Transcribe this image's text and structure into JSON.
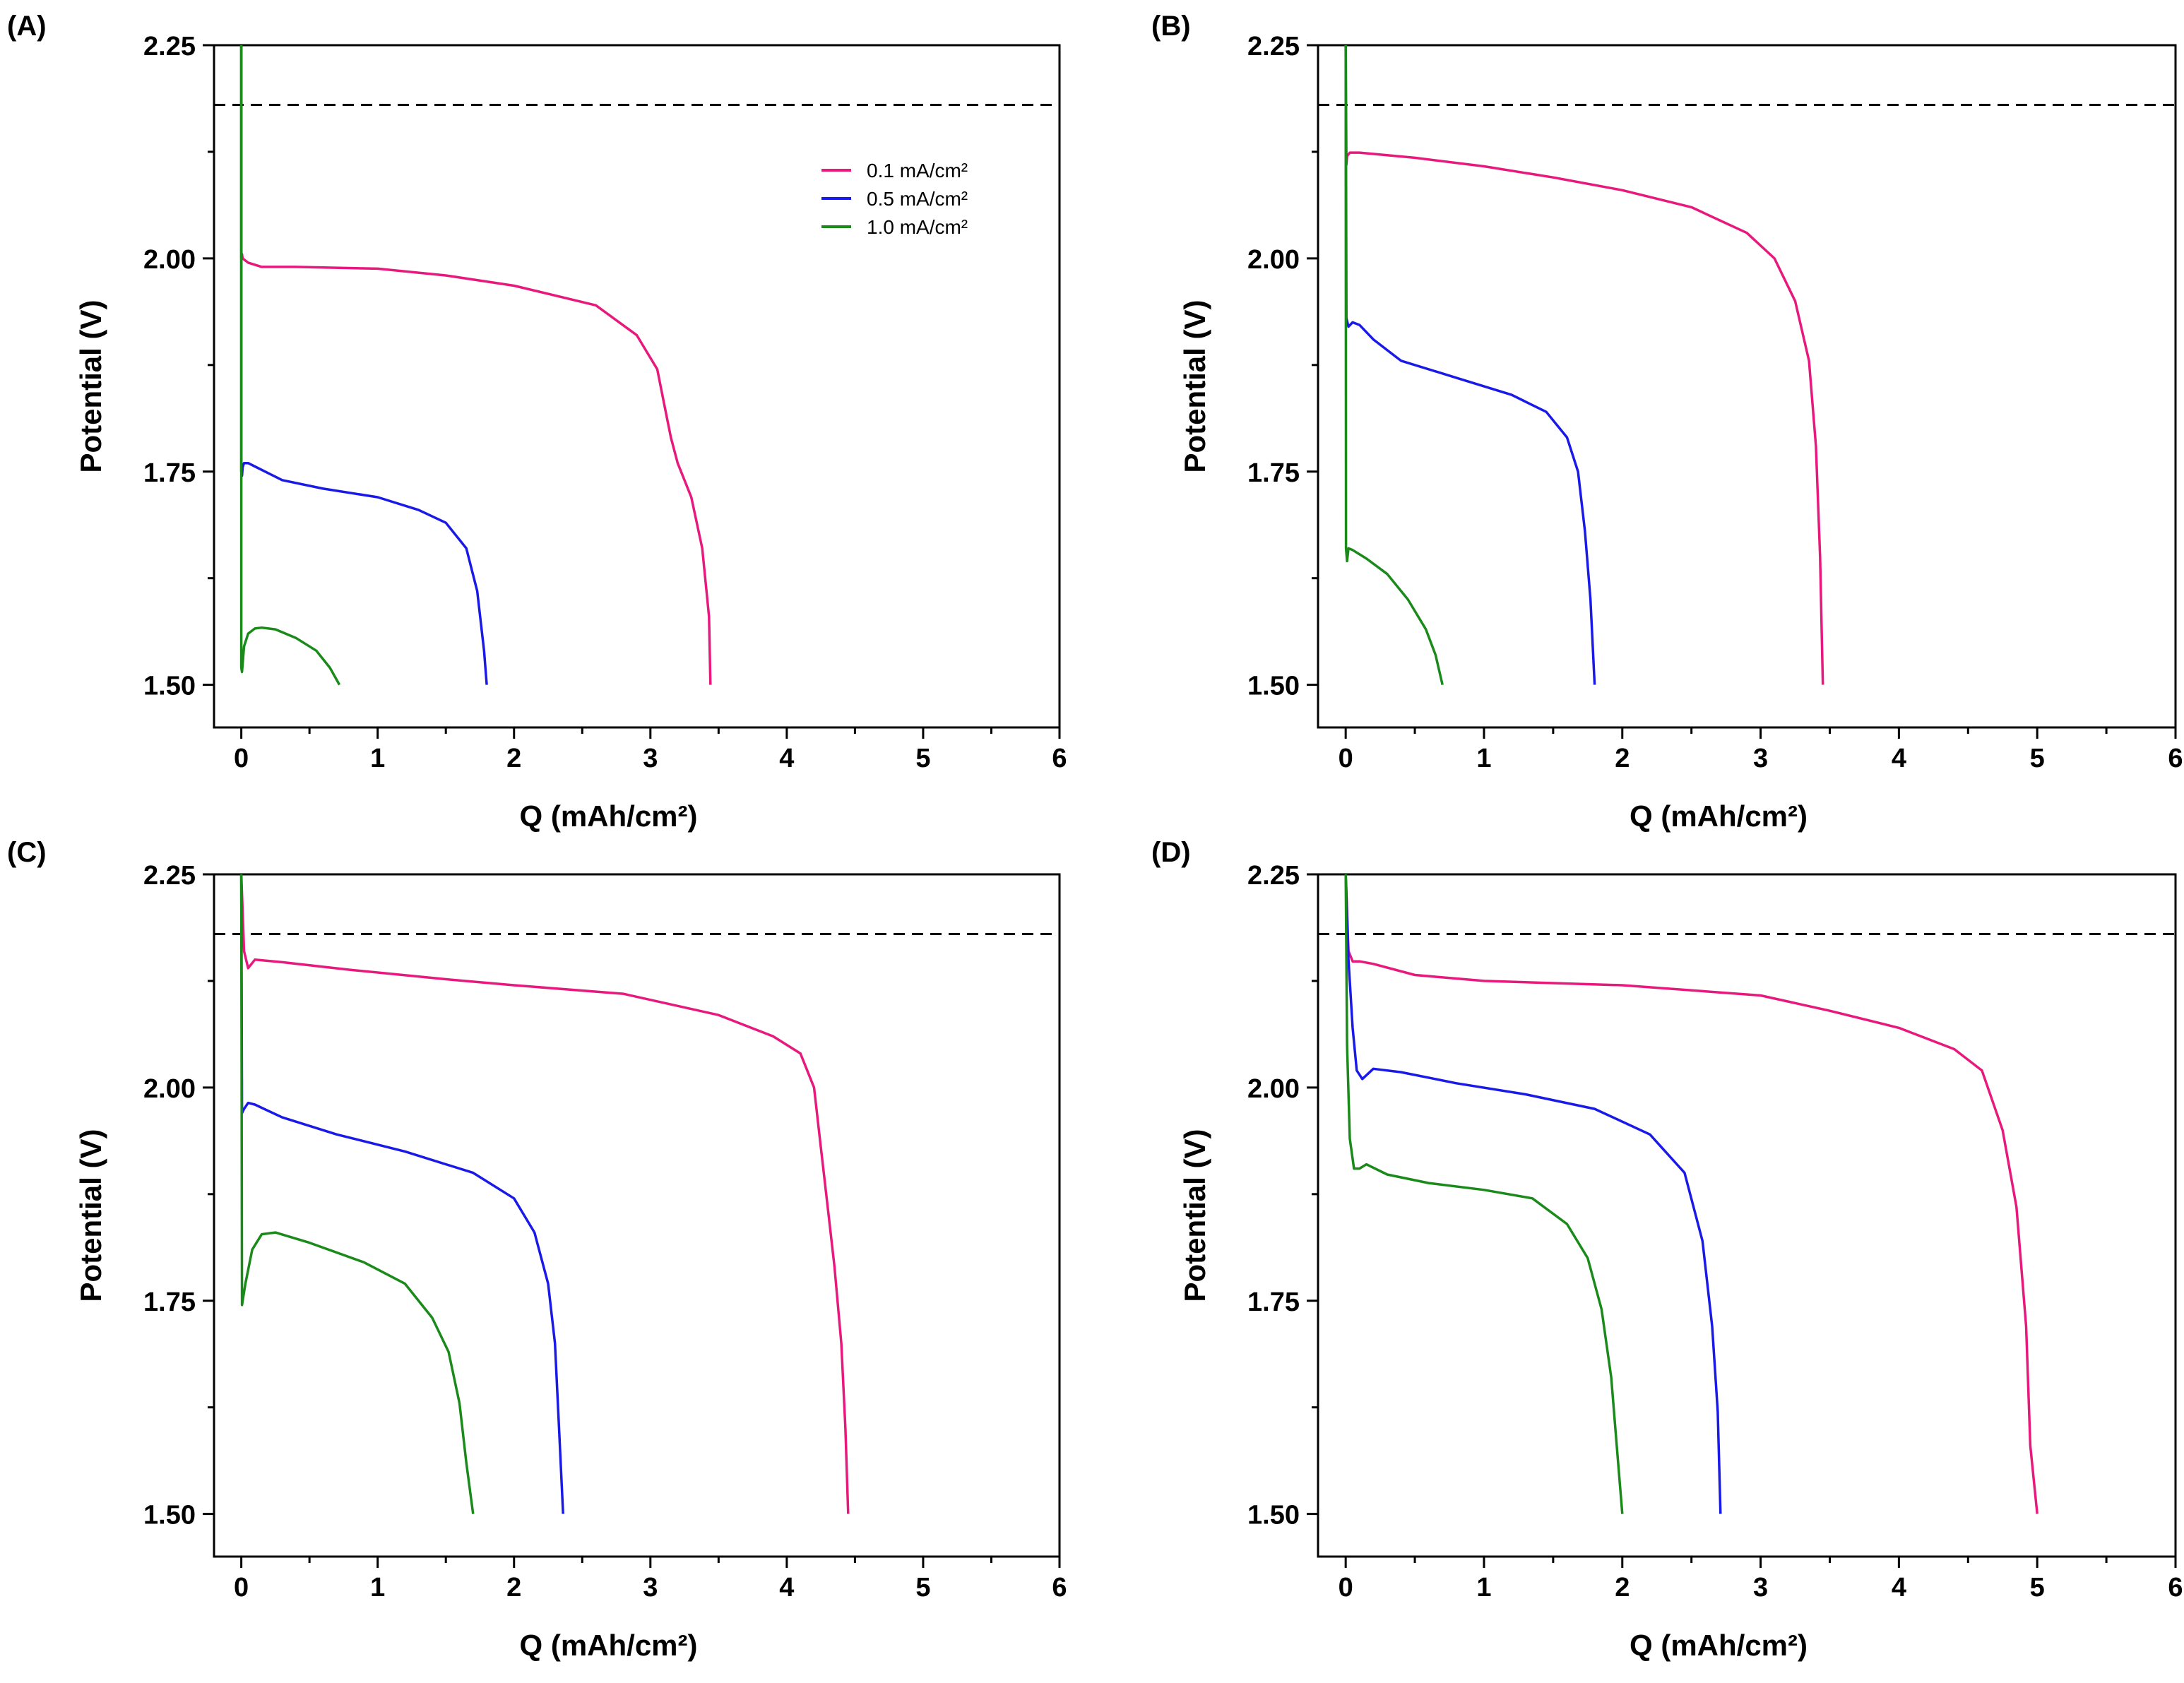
{
  "chart_data": [
    {
      "panel": "(A)",
      "type": "line",
      "xlabel": "Q (mAh/cm²)",
      "ylabel": "Potential (V)",
      "xlim": [
        -0.2,
        6
      ],
      "ylim": [
        1.45,
        2.25
      ],
      "xticks": [
        0,
        1,
        2,
        3,
        4,
        5,
        6
      ],
      "yticks": [
        "1.50",
        "1.75",
        "2.00",
        "2.25"
      ],
      "reference_line_y": 2.18,
      "legend": {
        "position": "top-right",
        "entries": [
          "0.1 mA/cm²",
          "0.5 mA/cm²",
          "1.0 mA/cm²"
        ]
      },
      "series": [
        {
          "name": "0.1 mA/cm²",
          "color": "#e8197d",
          "x": [
            0,
            0,
            0.005,
            0.01,
            0.05,
            0.15,
            0.4,
            1.0,
            1.5,
            2.0,
            2.6,
            2.9,
            3.05,
            3.1,
            3.15,
            3.2,
            3.3,
            3.38,
            3.43,
            3.44
          ],
          "y": [
            2.25,
            2.0,
            2.005,
            2.0,
            1.995,
            1.99,
            1.99,
            1.988,
            1.98,
            1.968,
            1.945,
            1.91,
            1.87,
            1.83,
            1.79,
            1.76,
            1.72,
            1.66,
            1.58,
            1.5
          ]
        },
        {
          "name": "0.5 mA/cm²",
          "color": "#1a1ae8",
          "x": [
            0,
            0,
            0.005,
            0.01,
            0.02,
            0.05,
            0.1,
            0.3,
            0.6,
            1.0,
            1.3,
            1.5,
            1.65,
            1.73,
            1.78,
            1.8
          ],
          "y": [
            2.25,
            1.75,
            1.745,
            1.755,
            1.76,
            1.76,
            1.756,
            1.74,
            1.73,
            1.72,
            1.705,
            1.69,
            1.66,
            1.61,
            1.54,
            1.5
          ]
        },
        {
          "name": "1.0 mA/cm²",
          "color": "#1a8a1a",
          "x": [
            0,
            0,
            0.005,
            0.02,
            0.05,
            0.1,
            0.15,
            0.25,
            0.4,
            0.55,
            0.65,
            0.72
          ],
          "y": [
            2.25,
            1.52,
            1.515,
            1.545,
            1.56,
            1.566,
            1.567,
            1.565,
            1.555,
            1.54,
            1.52,
            1.5
          ]
        }
      ]
    },
    {
      "panel": "(B)",
      "type": "line",
      "xlabel": "Q (mAh/cm²)",
      "ylabel": "Potential (V)",
      "xlim": [
        -0.2,
        6
      ],
      "ylim": [
        1.45,
        2.25
      ],
      "xticks": [
        0,
        1,
        2,
        3,
        4,
        5,
        6
      ],
      "yticks": [
        "1.50",
        "1.75",
        "2.00",
        "2.25"
      ],
      "reference_line_y": 2.18,
      "series": [
        {
          "name": "0.1 mA/cm²",
          "color": "#e8197d",
          "x": [
            0,
            0.005,
            0.01,
            0.03,
            0.1,
            0.5,
            1.0,
            1.5,
            2.0,
            2.5,
            2.9,
            3.1,
            3.25,
            3.35,
            3.4,
            3.43,
            3.45
          ],
          "y": [
            2.25,
            2.11,
            2.12,
            2.124,
            2.124,
            2.118,
            2.108,
            2.095,
            2.08,
            2.06,
            2.03,
            2.0,
            1.95,
            1.88,
            1.78,
            1.65,
            1.5
          ]
        },
        {
          "name": "0.5 mA/cm²",
          "color": "#1a1ae8",
          "x": [
            0,
            0.005,
            0.02,
            0.05,
            0.1,
            0.2,
            0.4,
            0.8,
            1.2,
            1.45,
            1.6,
            1.68,
            1.73,
            1.77,
            1.8
          ],
          "y": [
            2.25,
            1.93,
            1.92,
            1.925,
            1.922,
            1.905,
            1.88,
            1.86,
            1.84,
            1.82,
            1.79,
            1.75,
            1.68,
            1.6,
            1.5
          ]
        },
        {
          "name": "1.0 mA/cm²",
          "color": "#1a8a1a",
          "x": [
            0,
            0.002,
            0.01,
            0.02,
            0.05,
            0.15,
            0.3,
            0.45,
            0.58,
            0.65,
            0.7
          ],
          "y": [
            2.25,
            1.66,
            1.645,
            1.66,
            1.658,
            1.648,
            1.63,
            1.6,
            1.565,
            1.535,
            1.5
          ]
        }
      ]
    },
    {
      "panel": "(C)",
      "type": "line",
      "xlabel": "Q (mAh/cm²)",
      "ylabel": "Potential (V)",
      "xlim": [
        -0.2,
        6
      ],
      "ylim": [
        1.45,
        2.25
      ],
      "xticks": [
        0,
        1,
        2,
        3,
        4,
        5,
        6
      ],
      "yticks": [
        "1.50",
        "1.75",
        "2.00",
        "2.25"
      ],
      "reference_line_y": 2.18,
      "series": [
        {
          "name": "0.1 mA/cm²",
          "color": "#e8197d",
          "x": [
            0,
            0.02,
            0.05,
            0.1,
            0.3,
            0.8,
            1.5,
            2.0,
            2.8,
            3.5,
            3.9,
            4.1,
            4.2,
            4.25,
            4.3,
            4.35,
            4.4,
            4.43,
            4.45
          ],
          "y": [
            2.25,
            2.16,
            2.14,
            2.15,
            2.147,
            2.138,
            2.127,
            2.12,
            2.11,
            2.085,
            2.06,
            2.04,
            2.0,
            1.93,
            1.86,
            1.79,
            1.7,
            1.6,
            1.5
          ]
        },
        {
          "name": "0.5 mA/cm²",
          "color": "#1a1ae8",
          "x": [
            0,
            0.005,
            0.02,
            0.05,
            0.1,
            0.3,
            0.7,
            1.2,
            1.7,
            2.0,
            2.15,
            2.25,
            2.3,
            2.33,
            2.36
          ],
          "y": [
            2.25,
            1.97,
            1.975,
            1.982,
            1.98,
            1.965,
            1.945,
            1.925,
            1.9,
            1.87,
            1.83,
            1.77,
            1.7,
            1.6,
            1.5
          ]
        },
        {
          "name": "1.0 mA/cm²",
          "color": "#1a8a1a",
          "x": [
            0,
            0.005,
            0.03,
            0.08,
            0.15,
            0.25,
            0.5,
            0.9,
            1.2,
            1.4,
            1.52,
            1.6,
            1.65,
            1.7
          ],
          "y": [
            2.25,
            1.745,
            1.77,
            1.81,
            1.828,
            1.83,
            1.818,
            1.795,
            1.77,
            1.73,
            1.69,
            1.63,
            1.56,
            1.5
          ]
        }
      ]
    },
    {
      "panel": "(D)",
      "type": "line",
      "xlabel": "Q (mAh/cm²)",
      "ylabel": "Potential (V)",
      "xlim": [
        -0.2,
        6
      ],
      "ylim": [
        1.45,
        2.25
      ],
      "xticks": [
        0,
        1,
        2,
        3,
        4,
        5,
        6
      ],
      "yticks": [
        "1.50",
        "1.75",
        "2.00",
        "2.25"
      ],
      "reference_line_y": 2.18,
      "series": [
        {
          "name": "0.1 mA/cm²",
          "color": "#e8197d",
          "x": [
            0,
            0.02,
            0.05,
            0.1,
            0.2,
            0.5,
            1.0,
            2.0,
            3.0,
            3.5,
            4.0,
            4.4,
            4.6,
            4.75,
            4.85,
            4.92,
            4.95,
            5.0
          ],
          "y": [
            2.25,
            2.16,
            2.148,
            2.148,
            2.145,
            2.132,
            2.125,
            2.12,
            2.108,
            2.09,
            2.07,
            2.045,
            2.02,
            1.95,
            1.86,
            1.72,
            1.58,
            1.5
          ]
        },
        {
          "name": "0.5 mA/cm²",
          "color": "#1a1ae8",
          "x": [
            0,
            0.02,
            0.05,
            0.08,
            0.12,
            0.2,
            0.4,
            0.8,
            1.3,
            1.8,
            2.2,
            2.45,
            2.58,
            2.65,
            2.69,
            2.71
          ],
          "y": [
            2.25,
            2.15,
            2.07,
            2.02,
            2.01,
            2.022,
            2.018,
            2.005,
            1.992,
            1.975,
            1.945,
            1.9,
            1.82,
            1.72,
            1.62,
            1.5
          ]
        },
        {
          "name": "1.0 mA/cm²",
          "color": "#1a8a1a",
          "x": [
            0,
            0.01,
            0.03,
            0.06,
            0.1,
            0.15,
            0.3,
            0.6,
            1.0,
            1.35,
            1.6,
            1.75,
            1.85,
            1.92,
            1.96,
            2.0
          ],
          "y": [
            2.25,
            2.05,
            1.94,
            1.905,
            1.905,
            1.91,
            1.898,
            1.888,
            1.88,
            1.87,
            1.84,
            1.8,
            1.74,
            1.66,
            1.58,
            1.5
          ]
        }
      ]
    }
  ]
}
